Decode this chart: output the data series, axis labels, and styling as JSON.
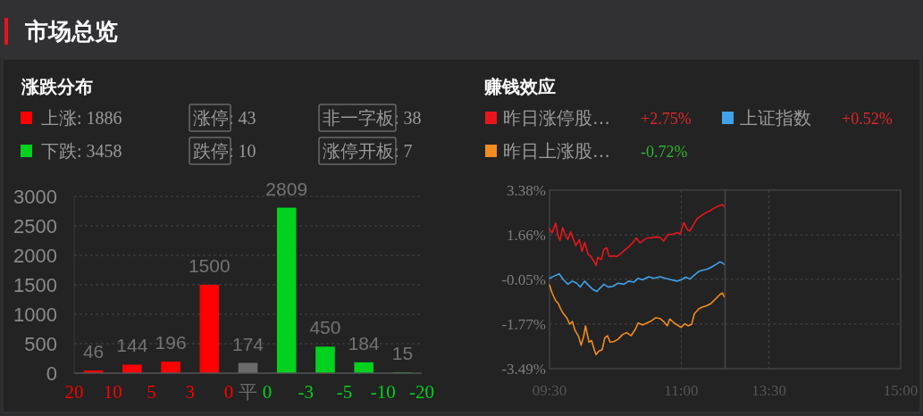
{
  "chart_data": [
    {
      "type": "other",
      "title": "市场总览"
    },
    {
      "type": "bar",
      "title": "涨跌分布",
      "categories": [
        "20",
        null,
        "10",
        null,
        "5",
        null,
        "3",
        null,
        "0",
        "平",
        "0",
        null,
        "-3",
        null,
        "-5",
        null,
        "-10",
        null,
        "-20"
      ],
      "series": [
        {
          "name": "上涨: 1886",
          "color": "#ff0000",
          "values": [
            null,
            46,
            null,
            144,
            null,
            196,
            null,
            1500,
            null,
            null,
            null,
            null,
            null,
            null,
            null,
            null,
            null,
            null,
            null
          ]
        },
        {
          "color": "#6b6b6b",
          "values": [
            null,
            null,
            null,
            null,
            null,
            null,
            null,
            null,
            null,
            174,
            null,
            null,
            null,
            null,
            null,
            null,
            null,
            null,
            null
          ]
        },
        {
          "name": "下跌: 3458",
          "color": "#00d21e",
          "values": [
            null,
            null,
            null,
            null,
            null,
            null,
            null,
            null,
            null,
            null,
            null,
            2809,
            null,
            450,
            null,
            184,
            null,
            15,
            null
          ]
        }
      ],
      "data_labels": true,
      "ylim": [
        0,
        3000
      ],
      "yticks": [
        0,
        500,
        1000,
        1500,
        2000,
        2500,
        3000
      ],
      "grid": "y",
      "legend": "top left",
      "annotations": [
        "涨停: 43",
        "非一字板: 38",
        "跌停: 10",
        "涨停开板: 7"
      ]
    },
    {
      "type": "line",
      "title": "赚钱效应",
      "series": [
        {
          "name": "昨日涨停股…",
          "color": "#e8161c",
          "x": [
            9.5,
            9.53,
            9.57,
            9.6,
            9.62,
            9.65,
            9.68,
            9.71,
            9.74,
            9.78,
            9.8,
            9.84,
            9.87,
            9.9,
            9.94,
            9.97,
            10.01,
            10.03,
            10.05,
            10.09,
            10.12,
            10.15,
            10.18,
            10.22,
            10.27,
            10.32,
            10.36,
            10.41,
            10.46,
            10.49,
            10.53,
            10.57,
            10.61,
            10.66,
            10.71,
            10.76,
            10.8,
            10.85,
            10.9,
            10.95,
            10.99,
            11.03,
            11.07,
            11.1,
            11.13,
            11.18,
            11.23,
            11.28,
            11.33,
            11.37,
            11.42,
            11.47,
            11.49
          ],
          "values": [
            1.88,
            1.74,
            2.11,
            1.59,
            1.45,
            1.94,
            1.65,
            1.48,
            1.77,
            1.42,
            1.25,
            1.48,
            1.02,
            1.37,
            0.91,
            0.83,
            0.62,
            0.48,
            0.79,
            0.71,
            1.1,
            1.17,
            0.83,
            0.85,
            0.83,
            0.96,
            1.08,
            1.22,
            1.4,
            1.54,
            1.35,
            1.45,
            1.54,
            1.54,
            1.58,
            1.56,
            1.42,
            1.68,
            1.68,
            1.74,
            1.71,
            2.13,
            1.86,
            1.81,
            1.99,
            2.28,
            2.4,
            2.51,
            2.59,
            2.68,
            2.76,
            2.82,
            2.75
          ]
        },
        {
          "name": "上证指数",
          "color": "#3fa2ea",
          "x": [
            9.5,
            9.55,
            9.61,
            9.66,
            9.71,
            9.76,
            9.81,
            9.85,
            9.9,
            9.95,
            9.99,
            10.04,
            10.07,
            10.12,
            10.17,
            10.22,
            10.28,
            10.35,
            10.4,
            10.46,
            10.51,
            10.56,
            10.63,
            10.69,
            10.76,
            10.82,
            10.89,
            10.95,
            11,
            11.05,
            11.1,
            11.15,
            11.2,
            11.24,
            11.29,
            11.34,
            11.39,
            11.44,
            11.47,
            11.49
          ],
          "values": [
            -0.01,
            0.07,
            0.16,
            -0.07,
            -0.24,
            -0.12,
            -0.2,
            -0.35,
            -0.12,
            -0.3,
            -0.43,
            -0.52,
            -0.41,
            -0.24,
            -0.35,
            -0.32,
            -0.2,
            -0.24,
            -0.12,
            -0.16,
            -0.01,
            -0.07,
            0.05,
            -0.01,
            0.05,
            -0.01,
            -0.07,
            -0.12,
            -0.07,
            0.03,
            -0.04,
            0.11,
            0.25,
            0.3,
            0.33,
            0.41,
            0.51,
            0.62,
            0.58,
            0.52
          ]
        },
        {
          "name": "昨日上涨股…",
          "color": "#f28c1e",
          "x": [
            9.5,
            9.53,
            9.57,
            9.6,
            9.63,
            9.66,
            9.7,
            9.73,
            9.76,
            9.79,
            9.83,
            9.86,
            9.89,
            9.91,
            9.95,
            9.98,
            10.01,
            10.03,
            10.06,
            10.1,
            10.13,
            10.16,
            10.19,
            10.23,
            10.28,
            10.33,
            10.38,
            10.43,
            10.48,
            10.51,
            10.56,
            10.61,
            10.66,
            10.71,
            10.76,
            10.8,
            10.84,
            10.87,
            10.92,
            10.97,
            11,
            11.04,
            11.08,
            11.12,
            11.15,
            11.2,
            11.24,
            11.29,
            11.34,
            11.39,
            11.44,
            11.47,
            11.49
          ],
          "values": [
            -0.27,
            -0.58,
            -0.87,
            -0.98,
            -1.21,
            -1.38,
            -1.55,
            -1.78,
            -1.67,
            -2.01,
            -2.24,
            -2.59,
            -2.24,
            -1.84,
            -2.47,
            -2.41,
            -2.76,
            -2.95,
            -2.82,
            -2.76,
            -2.3,
            -2.22,
            -2.47,
            -2.45,
            -2.36,
            -2.18,
            -2.1,
            -2.22,
            -1.96,
            -1.73,
            -1.81,
            -1.73,
            -1.65,
            -1.53,
            -1.56,
            -1.67,
            -1.84,
            -1.58,
            -1.73,
            -1.84,
            -1.9,
            -1.76,
            -1.84,
            -1.78,
            -1.38,
            -1.19,
            -1.12,
            -1.07,
            -0.98,
            -0.81,
            -0.64,
            -0.58,
            -0.72
          ]
        }
      ],
      "xlim": [
        9.5,
        11.5
      ],
      "xticks": [
        {
          "value": 9.5,
          "label": "09:30"
        },
        {
          "value": 11,
          "label": "11:00"
        }
      ],
      "ylim": [
        -3.49,
        3.38
      ],
      "yticks": [
        {
          "value": 3.38,
          "label": "3.38%"
        },
        {
          "value": 1.66,
          "label": "1.66%"
        },
        {
          "value": -0.05,
          "label": "-0.05%"
        },
        {
          "value": -1.77,
          "label": "-1.77%"
        },
        {
          "value": -3.49,
          "label": "-3.49%"
        }
      ],
      "grid": true,
      "legend": "top right",
      "annotations": [
        "+2.75%",
        "+0.52%",
        "-0.72%"
      ]
    },
    {
      "type": "line",
      "xlim": [
        13,
        15
      ],
      "xticks": [
        {
          "value": 13.5,
          "label": "13:30"
        },
        {
          "value": 15,
          "label": "15:00"
        }
      ],
      "ylim": [
        -3.49,
        3.38
      ],
      "yticks": [
        3.38,
        1.66,
        -0.05,
        -1.77,
        -3.49
      ],
      "grid": true,
      "tick_labels": "x"
    }
  ]
}
